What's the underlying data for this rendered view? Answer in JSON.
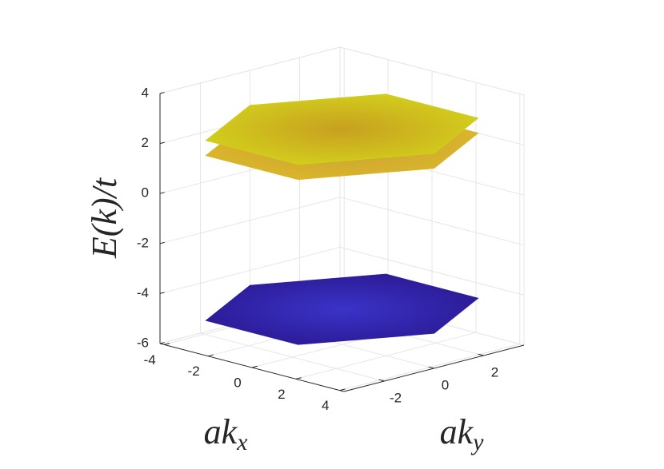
{
  "chart_data": {
    "type": "surface3d",
    "xlabel": {
      "text": "ak",
      "sub": "x"
    },
    "ylabel": {
      "text": "ak",
      "sub": "y"
    },
    "zlabel": "E(k)/t",
    "xlim": [
      -4.19,
      4.19
    ],
    "ylim": [
      -3.63,
      3.63
    ],
    "zlim": [
      -6,
      4
    ],
    "xticks": [
      -4,
      -2,
      0,
      2,
      4
    ],
    "yticks": [
      -2,
      0,
      2
    ],
    "zticks": [
      -6,
      -4,
      -2,
      0,
      2,
      4
    ],
    "grid": true,
    "series": [
      {
        "color": "#2e1f9e",
        "values": [
          -4.6,
          -4.6,
          -4.6,
          -4.6,
          -4.6,
          -4.6
        ]
      },
      {
        "color": "#d6b52c",
        "values": [
          2.0,
          2.0,
          2.0,
          2.0,
          2.0,
          2.0
        ]
      },
      {
        "color": "#cfcf1c",
        "values": [
          2.6,
          2.6,
          2.6,
          2.6,
          2.6,
          2.6
        ]
      }
    ]
  }
}
